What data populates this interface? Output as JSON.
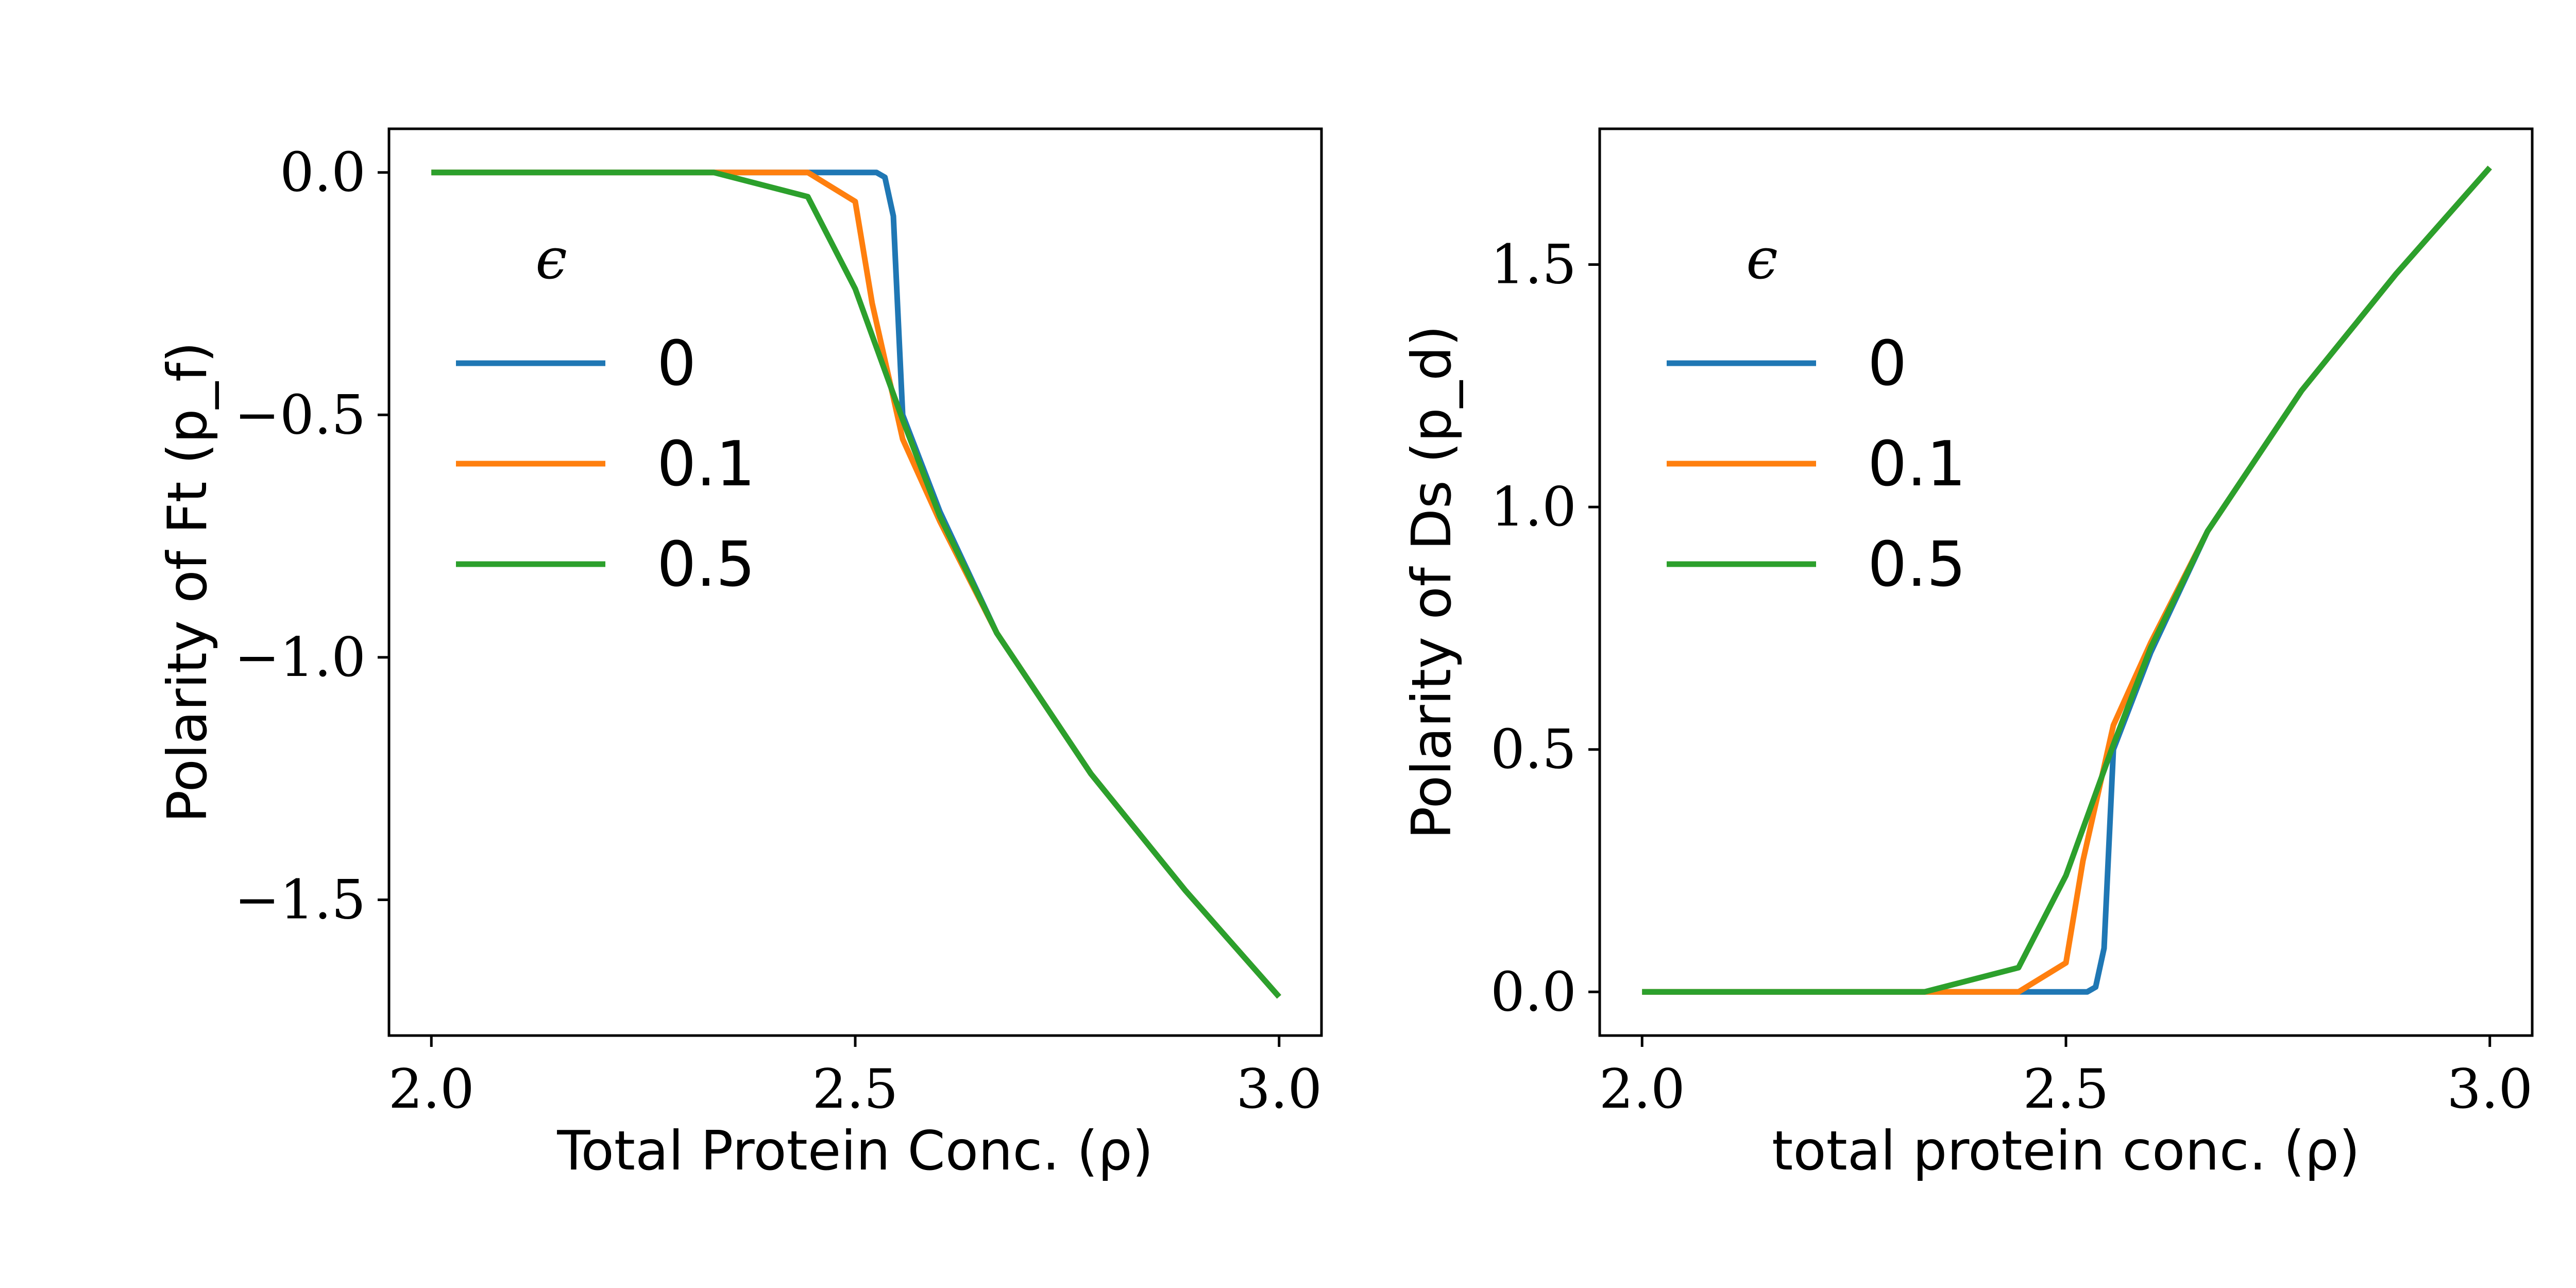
{
  "chart_data": [
    {
      "type": "line",
      "title": "",
      "xlabel": "Total Protein Conc. (ρ)",
      "ylabel": "Polarity of Ft (p_f)",
      "xlim": [
        1.95,
        3.05
      ],
      "ylim": [
        -1.78,
        0.09
      ],
      "xticks": [
        2.0,
        2.5,
        3.0
      ],
      "xtick_labels": [
        "2.0",
        "2.5",
        "3.0"
      ],
      "yticks": [
        0.0,
        -0.5,
        -1.0,
        -1.5
      ],
      "ytick_labels": [
        "0.0",
        "−0.5",
        "−1.0",
        "−1.5"
      ],
      "grid": false,
      "legend": {
        "title": "ϵ",
        "position": "upper-left"
      },
      "series": [
        {
          "name": "0",
          "color": "#1f77b4",
          "x": [
            2.0,
            2.111,
            2.222,
            2.333,
            2.444,
            2.5,
            2.525,
            2.535,
            2.545,
            2.556,
            2.6,
            2.667,
            2.778,
            2.889,
            3.0
          ],
          "y": [
            0.0,
            0.0,
            0.0,
            0.0,
            0.0,
            0.0,
            0.0,
            -0.01,
            -0.09,
            -0.5,
            -0.7,
            -0.95,
            -1.24,
            -1.48,
            -1.7
          ]
        },
        {
          "name": "0.1",
          "color": "#ff7f0e",
          "x": [
            2.0,
            2.111,
            2.222,
            2.333,
            2.444,
            2.5,
            2.52,
            2.556,
            2.6,
            2.667,
            2.778,
            2.889,
            3.0
          ],
          "y": [
            0.0,
            0.0,
            0.0,
            0.0,
            0.0,
            -0.06,
            -0.27,
            -0.55,
            -0.72,
            -0.95,
            -1.24,
            -1.48,
            -1.7
          ]
        },
        {
          "name": "0.5",
          "color": "#2ca02c",
          "x": [
            2.0,
            2.111,
            2.222,
            2.333,
            2.444,
            2.5,
            2.556,
            2.6,
            2.667,
            2.778,
            2.889,
            3.0
          ],
          "y": [
            0.0,
            0.0,
            0.0,
            0.0,
            -0.05,
            -0.24,
            -0.51,
            -0.71,
            -0.95,
            -1.24,
            -1.48,
            -1.7
          ]
        }
      ]
    },
    {
      "type": "line",
      "title": "",
      "xlabel": "total protein conc. (ρ)",
      "ylabel": "Polarity of Ds (p_d)",
      "xlim": [
        1.95,
        3.05
      ],
      "ylim": [
        -0.09,
        1.78
      ],
      "xticks": [
        2.0,
        2.5,
        3.0
      ],
      "xtick_labels": [
        "2.0",
        "2.5",
        "3.0"
      ],
      "yticks": [
        0.0,
        0.5,
        1.0,
        1.5
      ],
      "ytick_labels": [
        "0.0",
        "0.5",
        "1.0",
        "1.5"
      ],
      "grid": false,
      "legend": {
        "title": "ϵ",
        "position": "upper-left"
      },
      "series": [
        {
          "name": "0",
          "color": "#1f77b4",
          "x": [
            2.0,
            2.111,
            2.222,
            2.333,
            2.444,
            2.5,
            2.525,
            2.535,
            2.545,
            2.556,
            2.6,
            2.667,
            2.778,
            2.889,
            3.0
          ],
          "y": [
            0.0,
            0.0,
            0.0,
            0.0,
            0.0,
            0.0,
            0.0,
            0.01,
            0.09,
            0.5,
            0.7,
            0.95,
            1.24,
            1.48,
            1.7
          ]
        },
        {
          "name": "0.1",
          "color": "#ff7f0e",
          "x": [
            2.0,
            2.111,
            2.222,
            2.333,
            2.444,
            2.5,
            2.52,
            2.556,
            2.6,
            2.667,
            2.778,
            2.889,
            3.0
          ],
          "y": [
            0.0,
            0.0,
            0.0,
            0.0,
            0.0,
            0.06,
            0.27,
            0.55,
            0.72,
            0.95,
            1.24,
            1.48,
            1.7
          ]
        },
        {
          "name": "0.5",
          "color": "#2ca02c",
          "x": [
            2.0,
            2.111,
            2.222,
            2.333,
            2.444,
            2.5,
            2.556,
            2.6,
            2.667,
            2.778,
            2.889,
            3.0
          ],
          "y": [
            0.0,
            0.0,
            0.0,
            0.0,
            0.05,
            0.24,
            0.51,
            0.71,
            0.95,
            1.24,
            1.48,
            1.7
          ]
        }
      ]
    }
  ]
}
